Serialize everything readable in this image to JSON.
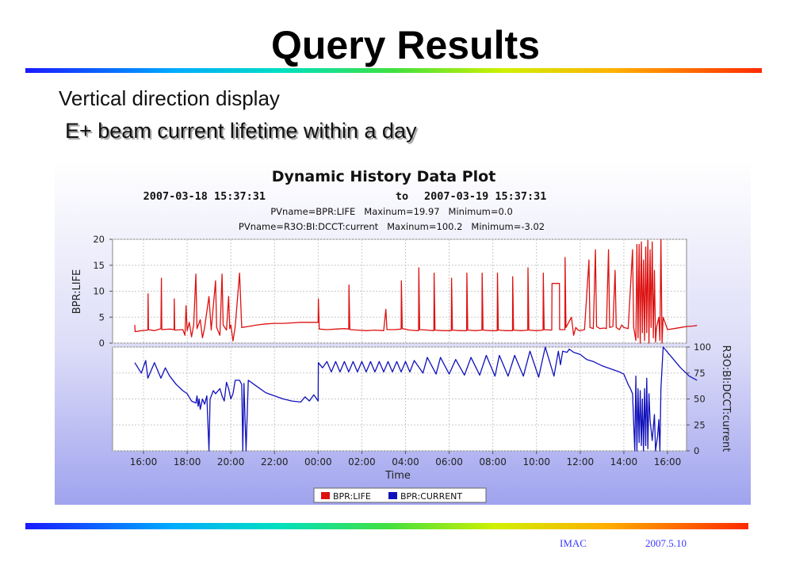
{
  "slide": {
    "title": "Query Results",
    "subtitle": "Vertical direction display",
    "caption": "E+ beam current lifetime within a day",
    "footer_left": "IMAC",
    "footer_right": "2007.5.10"
  },
  "chart_data": {
    "type": "line",
    "title": "Dynamic History Data Plot",
    "date_range": {
      "start": "2007-03-18 15:37:31",
      "sep": "to",
      "end": "2007-03-19 15:37:31"
    },
    "info_lines": [
      "PVname=BPR:LIFE   Maxinum=19.97   Minimum=0.0",
      "PVname=R3O:BI:DCCT:current   Maxinum=100.2   Minimum=-3.02"
    ],
    "xlabel": "Time",
    "x_ticks": [
      "16:00",
      "18:00",
      "20:00",
      "22:00",
      "00:00",
      "02:00",
      "04:00",
      "06:00",
      "08:00",
      "10:00",
      "12:00",
      "14:00",
      "16:00"
    ],
    "panels": [
      {
        "ylabel": "BPR:LIFE",
        "ylim": [
          0,
          20
        ],
        "yticks": [
          "0",
          "5",
          "10",
          "15",
          "20"
        ],
        "axis_side": "left"
      },
      {
        "ylabel": "R3O:BI:DCCT:current",
        "ylim": [
          0,
          100
        ],
        "yticks": [
          "0",
          "25",
          "50",
          "75",
          "100"
        ],
        "axis_side": "right"
      }
    ],
    "legend": [
      {
        "name": "BPR:LIFE",
        "color": "#dd1111"
      },
      {
        "name": "BPR:CURRENT",
        "color": "#1111bb"
      }
    ],
    "legend_position": "bottom-center",
    "series": [
      {
        "name": "BPR:LIFE",
        "panel": 0,
        "color": "#dd1111",
        "points": [
          [
            -0.4,
            3.5
          ],
          [
            -0.38,
            2.2
          ],
          [
            -0.1,
            2.4
          ],
          [
            0.2,
            2.5
          ],
          [
            0.21,
            9.5
          ],
          [
            0.23,
            2.6
          ],
          [
            0.5,
            2.4
          ],
          [
            0.8,
            2.8
          ],
          [
            0.82,
            12.5
          ],
          [
            0.84,
            2.6
          ],
          [
            1.2,
            2.7
          ],
          [
            1.4,
            2.6
          ],
          [
            1.41,
            8.5
          ],
          [
            1.43,
            2.5
          ],
          [
            1.8,
            2.6
          ],
          [
            1.9,
            1.5
          ],
          [
            1.95,
            7.2
          ],
          [
            2.0,
            2.4
          ],
          [
            2.1,
            4.0
          ],
          [
            2.2,
            1.2
          ],
          [
            2.3,
            3.5
          ],
          [
            2.4,
            13.3
          ],
          [
            2.45,
            2.8
          ],
          [
            2.6,
            4.5
          ],
          [
            2.7,
            1.0
          ],
          [
            2.8,
            3.0
          ],
          [
            3.0,
            9.0
          ],
          [
            3.1,
            2.5
          ],
          [
            3.3,
            12.0
          ],
          [
            3.35,
            3.0
          ],
          [
            3.5,
            1.5
          ],
          [
            3.6,
            13.3
          ],
          [
            3.65,
            3.5
          ],
          [
            3.8,
            2.5
          ],
          [
            3.9,
            9.0
          ],
          [
            3.95,
            2.8
          ],
          [
            4.0,
            3.5
          ],
          [
            4.1,
            0.4
          ],
          [
            4.2,
            3.2
          ],
          [
            4.4,
            13.5
          ],
          [
            4.5,
            3.0
          ],
          [
            4.8,
            3.2
          ],
          [
            5.2,
            3.5
          ],
          [
            5.6,
            3.7
          ],
          [
            6.0,
            3.8
          ],
          [
            6.4,
            3.8
          ],
          [
            6.8,
            3.9
          ],
          [
            7.2,
            4.0
          ],
          [
            7.6,
            4.0
          ],
          [
            8.0,
            4.0
          ],
          [
            8.01,
            8.5
          ],
          [
            8.05,
            2.7
          ],
          [
            8.4,
            2.6
          ],
          [
            8.8,
            2.7
          ],
          [
            9.2,
            2.8
          ],
          [
            9.4,
            2.7
          ],
          [
            9.41,
            11.2
          ],
          [
            9.45,
            2.6
          ],
          [
            9.8,
            2.5
          ],
          [
            10.2,
            2.4
          ],
          [
            10.6,
            2.5
          ],
          [
            11.0,
            2.4
          ],
          [
            11.1,
            6.5
          ],
          [
            11.15,
            2.6
          ],
          [
            11.5,
            2.6
          ],
          [
            11.8,
            2.7
          ],
          [
            11.81,
            12.0
          ],
          [
            11.85,
            2.8
          ],
          [
            12.2,
            2.5
          ],
          [
            12.6,
            2.4
          ],
          [
            12.61,
            14.5
          ],
          [
            12.65,
            2.6
          ],
          [
            13.0,
            2.5
          ],
          [
            13.3,
            2.4
          ],
          [
            13.31,
            13.5
          ],
          [
            13.35,
            2.5
          ],
          [
            13.7,
            2.4
          ],
          [
            14.1,
            2.4
          ],
          [
            14.11,
            12.5
          ],
          [
            14.15,
            2.5
          ],
          [
            14.5,
            2.4
          ],
          [
            14.8,
            2.4
          ],
          [
            14.81,
            13.5
          ],
          [
            14.85,
            2.5
          ],
          [
            15.2,
            2.4
          ],
          [
            15.5,
            2.5
          ],
          [
            15.51,
            13.5
          ],
          [
            15.55,
            2.5
          ],
          [
            15.9,
            2.4
          ],
          [
            16.2,
            2.4
          ],
          [
            16.21,
            13.5
          ],
          [
            16.25,
            2.5
          ],
          [
            16.6,
            2.4
          ],
          [
            16.9,
            2.4
          ],
          [
            16.91,
            12.8
          ],
          [
            16.95,
            2.5
          ],
          [
            17.3,
            2.4
          ],
          [
            17.6,
            2.5
          ],
          [
            17.61,
            14.5
          ],
          [
            17.65,
            2.5
          ],
          [
            18.0,
            2.4
          ],
          [
            18.3,
            2.5
          ],
          [
            18.31,
            13.5
          ],
          [
            18.35,
            2.6
          ],
          [
            18.7,
            2.5
          ],
          [
            18.71,
            11.5
          ],
          [
            19.05,
            11.5
          ],
          [
            19.06,
            2.6
          ],
          [
            19.3,
            2.6
          ],
          [
            19.31,
            16.5
          ],
          [
            19.35,
            3.0
          ],
          [
            19.6,
            5.0
          ],
          [
            19.7,
            1.5
          ],
          [
            19.8,
            3.0
          ],
          [
            19.9,
            2.5
          ],
          [
            20.0,
            2.4
          ],
          [
            20.2,
            2.6
          ],
          [
            20.4,
            16.0
          ],
          [
            20.45,
            3.0
          ],
          [
            20.6,
            2.8
          ],
          [
            20.7,
            18.0
          ],
          [
            20.75,
            3.2
          ],
          [
            20.9,
            2.8
          ],
          [
            21.1,
            2.9
          ],
          [
            21.2,
            2.8
          ],
          [
            21.3,
            18.0
          ],
          [
            21.35,
            3.0
          ],
          [
            21.5,
            3.2
          ],
          [
            21.6,
            14.0
          ],
          [
            21.65,
            3.0
          ],
          [
            21.8,
            2.6
          ],
          [
            21.9,
            3.5
          ],
          [
            22.0,
            3.0
          ],
          [
            22.2,
            2.8
          ],
          [
            22.4,
            18.0
          ],
          [
            22.45,
            3.0
          ],
          [
            22.55,
            0.5
          ],
          [
            22.6,
            19.0
          ],
          [
            22.65,
            1.0
          ],
          [
            22.7,
            19.0
          ],
          [
            22.75,
            0.0
          ],
          [
            22.8,
            19.5
          ],
          [
            22.85,
            2.0
          ],
          [
            22.9,
            16.0
          ],
          [
            22.95,
            0.5
          ],
          [
            23.0,
            18.5
          ],
          [
            23.05,
            2.0
          ],
          [
            23.1,
            19.8
          ],
          [
            23.15,
            0.0
          ],
          [
            23.2,
            18.0
          ],
          [
            23.25,
            3.0
          ],
          [
            23.3,
            19.5
          ],
          [
            23.35,
            1.0
          ],
          [
            23.4,
            14.0
          ],
          [
            23.45,
            0.2
          ],
          [
            23.5,
            3.0
          ],
          [
            23.6,
            5.0
          ],
          [
            23.65,
            0.5
          ],
          [
            23.7,
            19.97
          ],
          [
            23.75,
            0.0
          ],
          [
            23.8,
            5.0
          ],
          [
            24.0,
            2.6
          ],
          [
            24.3,
            2.8
          ],
          [
            24.6,
            3.0
          ],
          [
            24.9,
            3.2
          ],
          [
            25.2,
            3.3
          ],
          [
            25.35,
            3.4
          ]
        ]
      },
      {
        "name": "BPR:CURRENT",
        "panel": 1,
        "color": "#1111bb",
        "points": [
          [
            -0.4,
            85
          ],
          [
            -0.1,
            75
          ],
          [
            0.1,
            87
          ],
          [
            0.2,
            70
          ],
          [
            0.5,
            85
          ],
          [
            0.8,
            70
          ],
          [
            1.0,
            80
          ],
          [
            1.2,
            72
          ],
          [
            1.5,
            64
          ],
          [
            1.8,
            58
          ],
          [
            2.0,
            55
          ],
          [
            2.2,
            48
          ],
          [
            2.4,
            46
          ],
          [
            2.45,
            53
          ],
          [
            2.5,
            43
          ],
          [
            2.55,
            50
          ],
          [
            2.6,
            40
          ],
          [
            2.7,
            50
          ],
          [
            2.8,
            45
          ],
          [
            2.9,
            53
          ],
          [
            3.0,
            0
          ],
          [
            3.05,
            50
          ],
          [
            3.2,
            58
          ],
          [
            3.3,
            55
          ],
          [
            3.5,
            60
          ],
          [
            3.6,
            53
          ],
          [
            3.7,
            48
          ],
          [
            3.8,
            66
          ],
          [
            3.9,
            60
          ],
          [
            4.0,
            50
          ],
          [
            4.1,
            55
          ],
          [
            4.2,
            68
          ],
          [
            4.4,
            68
          ],
          [
            4.5,
            64
          ],
          [
            4.55,
            0
          ],
          [
            4.6,
            65
          ],
          [
            4.7,
            0
          ],
          [
            4.8,
            68
          ],
          [
            5.2,
            62
          ],
          [
            5.6,
            56
          ],
          [
            6.0,
            53
          ],
          [
            6.4,
            50
          ],
          [
            6.8,
            48
          ],
          [
            7.2,
            47
          ],
          [
            7.4,
            52
          ],
          [
            7.6,
            48
          ],
          [
            7.8,
            54
          ],
          [
            8.0,
            48
          ],
          [
            8.01,
            85
          ],
          [
            8.2,
            80
          ],
          [
            8.4,
            86
          ],
          [
            8.6,
            76
          ],
          [
            8.8,
            86
          ],
          [
            9.0,
            76
          ],
          [
            9.2,
            86
          ],
          [
            9.4,
            76
          ],
          [
            9.6,
            86
          ],
          [
            9.8,
            76
          ],
          [
            10.0,
            86
          ],
          [
            10.2,
            76
          ],
          [
            10.4,
            86
          ],
          [
            10.6,
            76
          ],
          [
            10.8,
            86
          ],
          [
            11.0,
            76
          ],
          [
            11.2,
            86
          ],
          [
            11.4,
            76
          ],
          [
            11.6,
            86
          ],
          [
            11.8,
            76
          ],
          [
            12.0,
            86
          ],
          [
            12.2,
            76
          ],
          [
            12.4,
            87
          ],
          [
            12.8,
            75
          ],
          [
            13.0,
            90
          ],
          [
            13.4,
            74
          ],
          [
            13.6,
            90
          ],
          [
            14.0,
            74
          ],
          [
            14.3,
            88
          ],
          [
            14.7,
            73
          ],
          [
            15.0,
            90
          ],
          [
            15.4,
            73
          ],
          [
            15.7,
            92
          ],
          [
            16.1,
            72
          ],
          [
            16.3,
            92
          ],
          [
            16.7,
            72
          ],
          [
            17.0,
            92
          ],
          [
            17.4,
            72
          ],
          [
            17.7,
            96
          ],
          [
            18.1,
            71
          ],
          [
            18.4,
            100
          ],
          [
            18.8,
            72
          ],
          [
            19.0,
            96
          ],
          [
            19.1,
            83
          ],
          [
            19.2,
            96
          ],
          [
            19.4,
            95
          ],
          [
            19.5,
            98
          ],
          [
            19.7,
            95
          ],
          [
            20.0,
            93
          ],
          [
            20.3,
            88
          ],
          [
            20.6,
            86
          ],
          [
            21.0,
            82
          ],
          [
            21.4,
            79
          ],
          [
            21.8,
            76
          ],
          [
            22.0,
            74
          ],
          [
            22.2,
            64
          ],
          [
            22.3,
            60
          ],
          [
            22.4,
            55
          ],
          [
            22.5,
            0
          ],
          [
            22.55,
            72
          ],
          [
            22.6,
            0
          ],
          [
            22.65,
            60
          ],
          [
            22.7,
            8
          ],
          [
            22.75,
            58
          ],
          [
            22.8,
            5
          ],
          [
            22.85,
            50
          ],
          [
            22.9,
            0
          ],
          [
            22.95,
            60
          ],
          [
            23.0,
            5
          ],
          [
            23.05,
            70
          ],
          [
            23.1,
            2
          ],
          [
            23.15,
            55
          ],
          [
            23.2,
            30
          ],
          [
            23.3,
            10
          ],
          [
            23.4,
            35
          ],
          [
            23.45,
            0
          ],
          [
            23.55,
            15
          ],
          [
            23.6,
            30
          ],
          [
            23.65,
            0
          ],
          [
            23.7,
            60
          ],
          [
            23.8,
            100
          ],
          [
            24.2,
            90
          ],
          [
            24.6,
            80
          ],
          [
            25.0,
            72
          ],
          [
            25.35,
            68
          ]
        ]
      }
    ]
  }
}
